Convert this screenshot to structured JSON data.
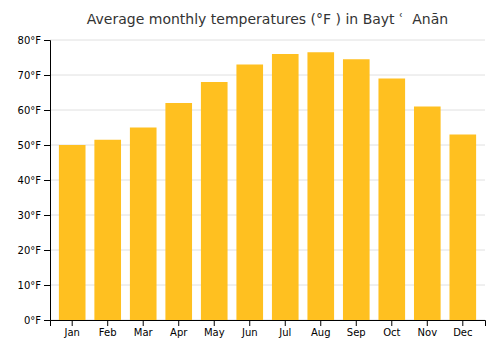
{
  "chart_data": {
    "type": "bar",
    "title": "Average monthly temperatures (°F ) in Bayt ʿ  Anān",
    "categories": [
      "Jan",
      "Feb",
      "Mar",
      "Apr",
      "May",
      "Jun",
      "Jul",
      "Aug",
      "Sep",
      "Oct",
      "Nov",
      "Dec"
    ],
    "values": [
      50,
      51.5,
      55,
      62,
      68,
      73,
      76,
      76.5,
      74.5,
      69,
      61,
      53
    ],
    "color": "#FFC020",
    "ylim": [
      0,
      80
    ],
    "yticks": [
      {
        "value": 0,
        "label": "0°F"
      },
      {
        "value": 10,
        "label": "10°F"
      },
      {
        "value": 20,
        "label": "20°F"
      },
      {
        "value": 30,
        "label": "30°F"
      },
      {
        "value": 40,
        "label": "40°F"
      },
      {
        "value": 50,
        "label": "50°F"
      },
      {
        "value": 60,
        "label": "60°F"
      },
      {
        "value": 70,
        "label": "70°F"
      },
      {
        "value": 80,
        "label": "80°F"
      }
    ],
    "grid": true
  }
}
